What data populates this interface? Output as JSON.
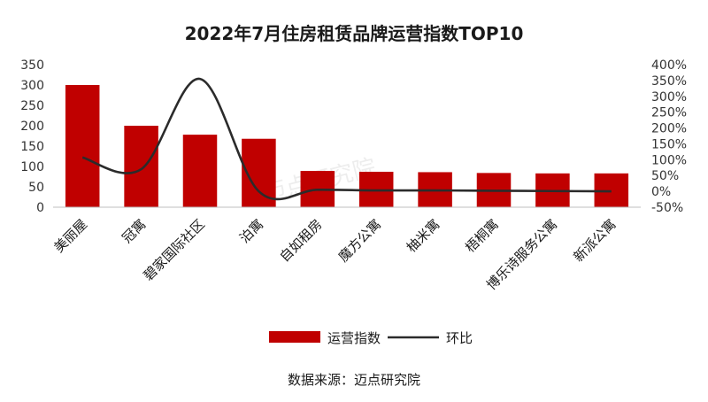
{
  "chart_data": {
    "type": "bar",
    "title": "2022年7月住房租赁品牌运营指数TOP10",
    "categories": [
      "美丽屋",
      "冠寓",
      "碧家国际社区",
      "泊寓",
      "自如租房",
      "魔方公寓",
      "柚米寓",
      "梧桐寓",
      "博乐诗服务公寓",
      "新派公寓"
    ],
    "series": [
      {
        "name": "运营指数",
        "kind": "bar",
        "axis": "left",
        "color": "#c00000",
        "values": [
          300,
          200,
          178,
          168,
          89,
          87,
          86,
          84,
          83,
          83
        ]
      },
      {
        "name": "环比",
        "kind": "line",
        "axis": "right",
        "color": "#2b2b2b",
        "values": [
          107,
          70,
          355,
          0,
          5,
          3,
          3,
          2,
          1,
          0
        ]
      }
    ],
    "y_left": {
      "min": 0,
      "max": 350,
      "ticks": [
        0,
        50,
        100,
        150,
        200,
        250,
        300,
        350
      ]
    },
    "y_right": {
      "min": -50,
      "max": 400,
      "ticks": [
        -50,
        0,
        50,
        100,
        150,
        200,
        250,
        300,
        350,
        400
      ],
      "tick_labels": [
        "-50%",
        "0%",
        "50%",
        "100%",
        "150%",
        "200%",
        "250%",
        "300%",
        "350%",
        "400%"
      ]
    },
    "legend": {
      "position": "bottom",
      "items": [
        "运营指数",
        "环比"
      ]
    },
    "grid": false,
    "source": "数据来源：迈点研究院",
    "watermark": "迈点研究院"
  }
}
